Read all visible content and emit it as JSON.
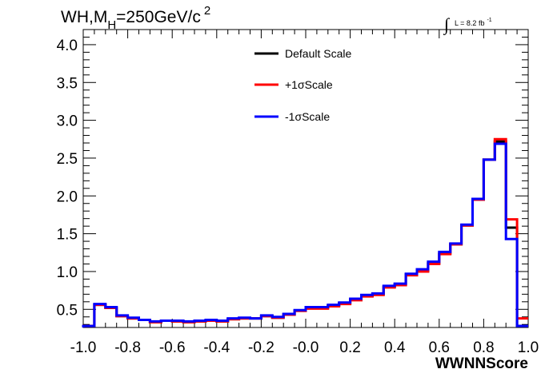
{
  "chart_data": {
    "type": "line",
    "title_main": "WH,M",
    "title_sub": "H",
    "title_rest": "=250GeV/c",
    "title_sup": "2",
    "lumi_symbol": "∫",
    "lumi_label": "L = 8.2 fb",
    "lumi_sup": "-1",
    "xlabel": "WWNNScore",
    "ylabel": "",
    "xlim": [
      -1.0,
      1.0
    ],
    "ylim": [
      0.26,
      4.2
    ],
    "x_ticks": [
      "-1.0",
      "-0.8",
      "-0.6",
      "-0.4",
      "-0.2",
      "-0.0",
      "0.2",
      "0.4",
      "0.6",
      "0.8",
      "1.0"
    ],
    "y_ticks": [
      "0.5",
      "1.0",
      "1.5",
      "2.0",
      "2.5",
      "3.0",
      "3.5",
      "4.0"
    ],
    "bin_edges": [
      -1.0,
      -0.95,
      -0.9,
      -0.85,
      -0.8,
      -0.75,
      -0.7,
      -0.65,
      -0.6,
      -0.55,
      -0.5,
      -0.45,
      -0.4,
      -0.35,
      -0.3,
      -0.25,
      -0.2,
      -0.15,
      -0.1,
      -0.05,
      0.0,
      0.05,
      0.1,
      0.15,
      0.2,
      0.25,
      0.3,
      0.35,
      0.4,
      0.45,
      0.5,
      0.55,
      0.6,
      0.65,
      0.7,
      0.75,
      0.8,
      0.85,
      0.9,
      0.95,
      1.0
    ],
    "series": [
      {
        "name": "Default Scale",
        "color": "#000000",
        "values": [
          0.28,
          0.56,
          0.52,
          0.41,
          0.38,
          0.36,
          0.33,
          0.35,
          0.34,
          0.33,
          0.34,
          0.35,
          0.34,
          0.37,
          0.38,
          0.38,
          0.41,
          0.39,
          0.43,
          0.48,
          0.52,
          0.52,
          0.55,
          0.58,
          0.63,
          0.68,
          0.7,
          0.8,
          0.83,
          0.96,
          1.01,
          1.11,
          1.24,
          1.36,
          1.61,
          1.95,
          2.48,
          2.72,
          1.58,
          0.28
        ]
      },
      {
        "name": "+1σScale",
        "color": "#ff0000",
        "values": [
          0.28,
          0.56,
          0.52,
          0.41,
          0.38,
          0.36,
          0.33,
          0.35,
          0.34,
          0.33,
          0.34,
          0.35,
          0.34,
          0.37,
          0.38,
          0.38,
          0.41,
          0.39,
          0.43,
          0.48,
          0.51,
          0.51,
          0.54,
          0.57,
          0.62,
          0.67,
          0.69,
          0.79,
          0.82,
          0.95,
          1.0,
          1.1,
          1.23,
          1.36,
          1.61,
          1.95,
          2.48,
          2.75,
          1.69,
          0.38
        ]
      },
      {
        "name": "-1σScale",
        "color": "#0000ff",
        "values": [
          0.28,
          0.57,
          0.53,
          0.42,
          0.39,
          0.36,
          0.34,
          0.35,
          0.35,
          0.34,
          0.35,
          0.36,
          0.35,
          0.38,
          0.39,
          0.38,
          0.42,
          0.4,
          0.44,
          0.49,
          0.53,
          0.53,
          0.56,
          0.59,
          0.64,
          0.69,
          0.71,
          0.81,
          0.84,
          0.97,
          1.03,
          1.13,
          1.26,
          1.37,
          1.62,
          1.96,
          2.48,
          2.69,
          1.43,
          0.28
        ]
      }
    ],
    "legend_placement": "top-center",
    "grid": false
  }
}
